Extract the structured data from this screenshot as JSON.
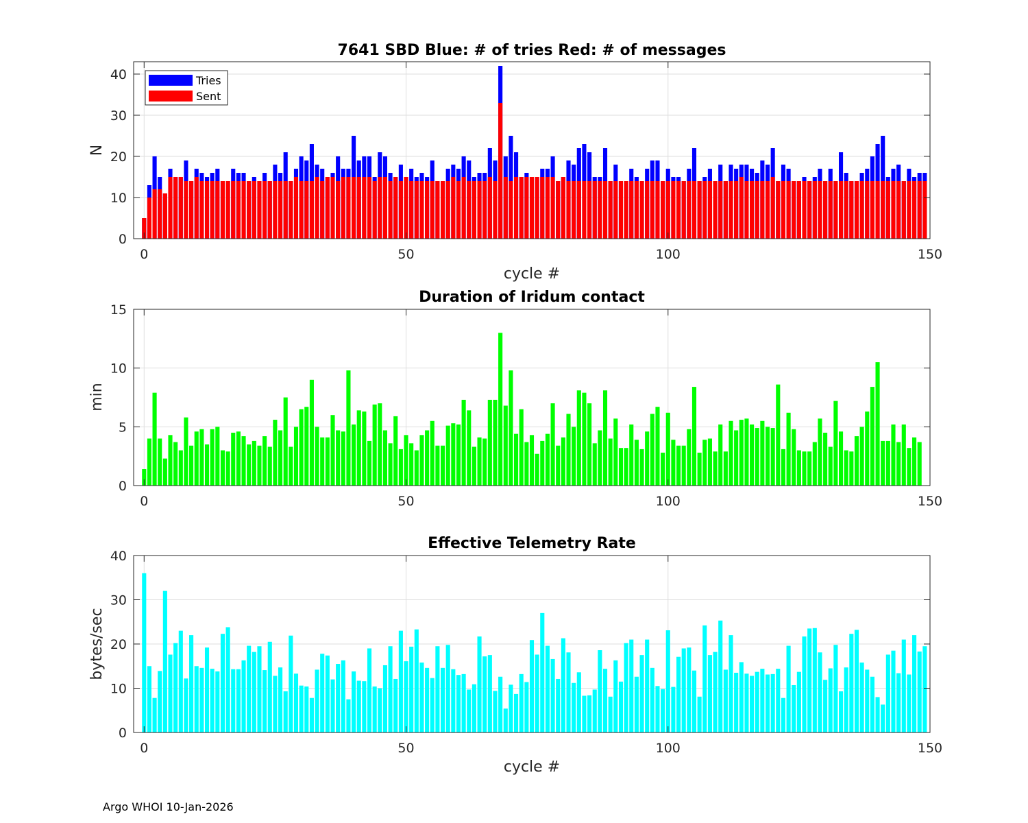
{
  "footer": "Argo WHOI 10-Jan-2026",
  "colors": {
    "tries": "#0000ff",
    "sent": "#ff0000",
    "duration": "#00ff00",
    "rate": "#00ffff",
    "grid": "#dedede",
    "axis": "#262626"
  },
  "chart_data": [
    {
      "type": "bar",
      "title": "7641 SBD  Blue: # of tries   Red: # of messages",
      "xlabel": "cycle #",
      "ylabel": "N",
      "xlim": [
        -2,
        150
      ],
      "ylim": [
        0,
        43
      ],
      "xticks": [
        0,
        50,
        100,
        150
      ],
      "yticks": [
        0,
        10,
        20,
        30,
        40
      ],
      "legend": {
        "position": "top-left",
        "entries": [
          "Tries",
          "Sent"
        ]
      },
      "x_start": 0,
      "series": [
        {
          "name": "Tries",
          "values": [
            5,
            13,
            20,
            15,
            11,
            17,
            15,
            15,
            19,
            14,
            17,
            16,
            15,
            16,
            17,
            14,
            14,
            17,
            16,
            16,
            14,
            15,
            14,
            16,
            14,
            18,
            16,
            21,
            14,
            17,
            20,
            19,
            23,
            18,
            17,
            15,
            16,
            20,
            17,
            17,
            25,
            19,
            20,
            20,
            15,
            21,
            20,
            16,
            15,
            18,
            15,
            17,
            15,
            16,
            15,
            19,
            14,
            14,
            17,
            18,
            17,
            20,
            19,
            15,
            16,
            16,
            22,
            19,
            42,
            20,
            25,
            21,
            15,
            16,
            15,
            15,
            17,
            17,
            20,
            14,
            15,
            19,
            18,
            22,
            23,
            21,
            15,
            15,
            22,
            14,
            18,
            14,
            14,
            17,
            15,
            14,
            17,
            19,
            19,
            14,
            17,
            15,
            15,
            14,
            17,
            22,
            14,
            15,
            17,
            14,
            18,
            14,
            18,
            17,
            18,
            18,
            17,
            16,
            19,
            18,
            22,
            14,
            18,
            17,
            14,
            14,
            15,
            14,
            15,
            17,
            14,
            17,
            14,
            21,
            16,
            14,
            14,
            16,
            17,
            20,
            23,
            25,
            15,
            17,
            18,
            14,
            17,
            15,
            16,
            16
          ]
        },
        {
          "name": "Sent",
          "values": [
            5,
            10,
            12,
            12,
            11,
            15,
            15,
            15,
            14,
            14,
            15,
            14,
            14,
            14,
            14,
            14,
            14,
            14,
            14,
            14,
            14,
            14,
            14,
            14,
            14,
            14,
            14,
            14,
            14,
            15,
            14,
            14,
            14,
            15,
            14,
            15,
            15,
            14,
            15,
            15,
            15,
            15,
            15,
            15,
            14,
            15,
            15,
            14,
            15,
            14,
            15,
            14,
            14,
            14,
            14,
            14,
            14,
            14,
            14,
            15,
            14,
            15,
            14,
            14,
            14,
            14,
            15,
            14,
            33,
            15,
            14,
            15,
            15,
            15,
            15,
            15,
            15,
            15,
            15,
            14,
            15,
            14,
            14,
            14,
            14,
            14,
            14,
            14,
            14,
            14,
            14,
            14,
            14,
            14,
            14,
            14,
            14,
            14,
            14,
            14,
            14,
            14,
            14,
            14,
            14,
            14,
            14,
            14,
            14,
            14,
            14,
            14,
            14,
            14,
            15,
            14,
            14,
            14,
            14,
            14,
            15,
            14,
            14,
            14,
            14,
            14,
            14,
            14,
            14,
            14,
            14,
            14,
            14,
            14,
            14,
            14,
            14,
            14,
            14,
            14,
            14,
            14,
            14,
            14,
            14,
            14,
            14,
            14,
            14,
            14
          ]
        }
      ]
    },
    {
      "type": "bar",
      "title": "Duration of Iridum contact",
      "xlabel": "",
      "ylabel": "min",
      "xlim": [
        -2,
        150
      ],
      "ylim": [
        0,
        15
      ],
      "xticks": [
        0,
        50,
        100,
        150
      ],
      "yticks": [
        0,
        5,
        10,
        15
      ],
      "x_start": 0,
      "series": [
        {
          "name": "Duration",
          "values": [
            1.4,
            4.0,
            7.9,
            4.0,
            2.3,
            4.3,
            3.7,
            3.0,
            5.8,
            3.4,
            4.6,
            4.8,
            3.5,
            4.8,
            5.0,
            3.0,
            2.9,
            4.5,
            4.6,
            4.2,
            3.5,
            3.8,
            3.4,
            4.2,
            3.3,
            5.6,
            4.7,
            7.5,
            3.3,
            5.0,
            6.5,
            6.7,
            9.0,
            5.0,
            4.1,
            4.1,
            6.0,
            4.7,
            4.6,
            9.8,
            5.2,
            6.4,
            6.3,
            3.8,
            6.9,
            7.0,
            4.7,
            3.6,
            5.9,
            3.1,
            4.3,
            3.6,
            3.0,
            4.3,
            4.7,
            5.5,
            3.4,
            3.4,
            5.1,
            5.3,
            5.2,
            7.3,
            6.4,
            3.3,
            4.1,
            4.0,
            7.3,
            7.3,
            13.0,
            6.8,
            9.8,
            4.4,
            6.5,
            3.7,
            4.3,
            2.7,
            3.8,
            4.4,
            7.0,
            3.4,
            4.1,
            6.1,
            5.0,
            8.1,
            7.9,
            7.0,
            3.6,
            4.7,
            8.1,
            4.0,
            5.7,
            3.2,
            3.2,
            5.2,
            3.9,
            3.1,
            4.6,
            6.1,
            6.7,
            2.8,
            6.2,
            3.9,
            3.4,
            3.4,
            4.8,
            8.4,
            2.8,
            3.9,
            4.0,
            2.9,
            5.2,
            2.9,
            5.5,
            4.7,
            5.6,
            5.7,
            5.2,
            4.9,
            5.5,
            5.0,
            4.9,
            8.6,
            3.1,
            6.2,
            4.8,
            3.0,
            2.9,
            2.9,
            3.7,
            5.7,
            4.5,
            3.3,
            7.2,
            4.6,
            3.0,
            2.9,
            4.2,
            5.0,
            6.3,
            8.4,
            10.5,
            3.8,
            3.8,
            5.2,
            3.7,
            5.2,
            3.2,
            4.1,
            3.7
          ]
        }
      ]
    },
    {
      "type": "bar",
      "title": "Effective Telemetry Rate",
      "xlabel": "cycle #",
      "ylabel": "bytes/sec",
      "xlim": [
        -2,
        150
      ],
      "ylim": [
        0,
        40
      ],
      "xticks": [
        0,
        50,
        100,
        150
      ],
      "yticks": [
        0,
        10,
        20,
        30,
        40
      ],
      "x_start": 0,
      "series": [
        {
          "name": "Rate",
          "values": [
            36,
            15,
            7.8,
            13.9,
            32,
            17.6,
            20.2,
            23,
            12.2,
            22,
            15,
            14.6,
            19.2,
            14.4,
            13.8,
            22.3,
            23.8,
            14.3,
            14.3,
            16.3,
            19.6,
            18.2,
            19.5,
            14.1,
            20.5,
            12.8,
            14.7,
            9.3,
            21.9,
            13.3,
            10.6,
            10.4,
            7.8,
            14.2,
            17.8,
            17.4,
            12,
            15.5,
            16.3,
            7.5,
            13.8,
            11.7,
            11.6,
            19,
            10.4,
            10,
            15.2,
            19.5,
            12.1,
            23,
            16.1,
            19.4,
            23.3,
            15.8,
            14.6,
            12.3,
            19.5,
            14.6,
            19.8,
            14.3,
            13,
            13.2,
            9.7,
            10.9,
            21.7,
            17.2,
            17.5,
            9.4,
            12.6,
            5.4,
            10.8,
            8.7,
            13.2,
            11.4,
            20.9,
            17.6,
            27,
            19.6,
            16.6,
            12.1,
            21.3,
            18.1,
            11.2,
            13.6,
            8.3,
            8.4,
            9.7,
            18.6,
            14.4,
            8.1,
            16.3,
            11.5,
            20.2,
            21,
            12.6,
            17.5,
            21,
            14.6,
            10.5,
            9.8,
            23.1,
            10.3,
            17.1,
            19,
            19.2,
            14,
            8.1,
            24.2,
            17.5,
            18.2,
            25.3,
            14.2,
            22,
            13.5,
            15.9,
            13.3,
            12.8,
            13.7,
            14.4,
            13.1,
            13.2,
            14.4,
            7.8,
            19.6,
            10.7,
            13.7,
            21.7,
            23.5,
            23.6,
            18.1,
            11.9,
            14.5,
            19.8,
            9.3,
            14.7,
            22.3,
            23.2,
            15.8,
            14.2,
            12.6,
            8,
            6.3,
            17.6,
            18.5,
            13.4,
            21,
            13.1,
            22,
            18.3,
            19.5
          ]
        }
      ]
    }
  ]
}
